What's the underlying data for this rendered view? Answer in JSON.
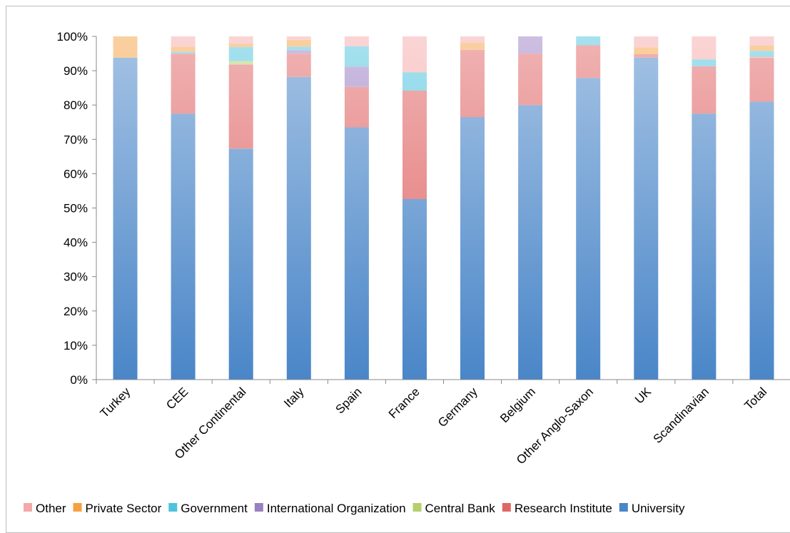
{
  "chart_data": {
    "type": "bar",
    "stacked": true,
    "percent": true,
    "title": "",
    "xlabel": "",
    "ylabel": "",
    "ylim": [
      0,
      100
    ],
    "y_ticks": [
      "0%",
      "10%",
      "20%",
      "30%",
      "40%",
      "50%",
      "60%",
      "70%",
      "80%",
      "90%",
      "100%"
    ],
    "grid": false,
    "legend_position": "bottom",
    "categories": [
      "Turkey",
      "CEE",
      "Other Continental",
      "Italy",
      "Spain",
      "France",
      "Germany",
      "Belgium",
      "Other Anglo-Saxon",
      "UK",
      "Scandinavian",
      "Total"
    ],
    "series": [
      {
        "name": "University",
        "color": "#4a86c8",
        "values": [
          93.8,
          77.5,
          67.3,
          88.2,
          73.5,
          52.6,
          76.5,
          80.0,
          87.9,
          93.8,
          77.5,
          81.0
        ]
      },
      {
        "name": "Research Institute",
        "color": "#e06666",
        "values": [
          0,
          17.5,
          24.5,
          6.8,
          11.8,
          31.6,
          19.6,
          15.0,
          9.5,
          1.0,
          13.8,
          12.8
        ]
      },
      {
        "name": "Central Bank",
        "color": "#b5cf6b",
        "values": [
          0,
          0,
          1.0,
          0,
          0,
          0,
          0,
          0,
          0,
          0,
          0,
          0.2
        ]
      },
      {
        "name": "International Organization",
        "color": "#9a7fc2",
        "values": [
          0,
          0,
          0,
          1.0,
          5.9,
          0,
          0,
          5.0,
          0,
          0,
          0,
          0.3
        ]
      },
      {
        "name": "Government",
        "color": "#4ec3dc",
        "values": [
          0,
          0.5,
          4.1,
          1.0,
          5.9,
          5.3,
          0,
          0,
          2.6,
          0,
          2.0,
          1.5
        ]
      },
      {
        "name": "Private Sector",
        "color": "#f5a042",
        "values": [
          6.2,
          1.5,
          1.0,
          2.0,
          0,
          0,
          2.0,
          0,
          0,
          2.0,
          0,
          1.5
        ]
      },
      {
        "name": "Other",
        "color": "#f4a9a8",
        "values": [
          0,
          3.0,
          2.1,
          1.0,
          2.9,
          10.5,
          1.9,
          0,
          0,
          3.2,
          6.7,
          2.7
        ]
      }
    ],
    "legend_order": [
      "Other",
      "Private Sector",
      "Government",
      "International Organization",
      "Central Bank",
      "Research Institute",
      "University"
    ]
  }
}
